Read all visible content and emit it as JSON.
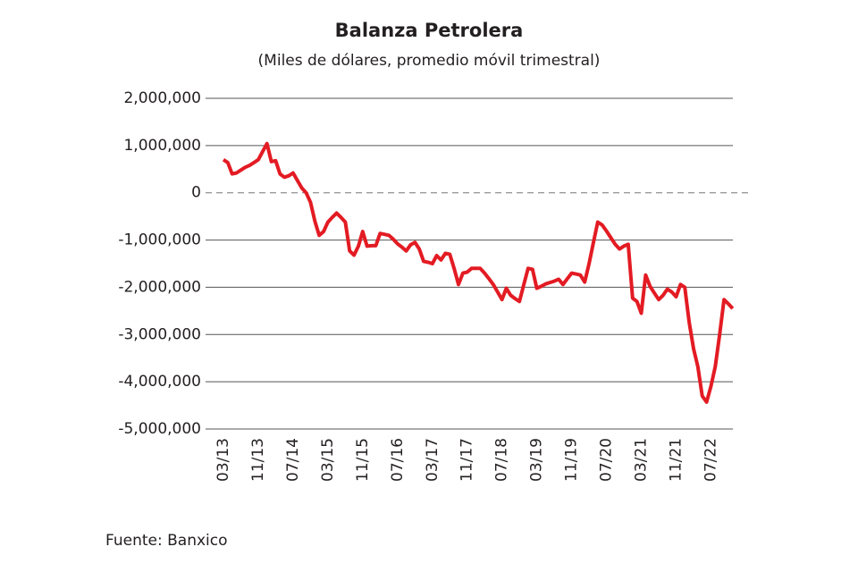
{
  "chart_data": {
    "type": "line",
    "title": "Balanza Petrolera",
    "subtitle": "(Miles de dólares, promedio móvil trimestral)",
    "source": "Fuente: Banxico",
    "categories": [
      "03/13",
      null,
      null,
      null,
      null,
      null,
      null,
      null,
      "11/13",
      null,
      null,
      null,
      null,
      null,
      null,
      null,
      "07/14",
      null,
      null,
      null,
      null,
      null,
      null,
      null,
      "03/15",
      null,
      null,
      null,
      null,
      null,
      null,
      null,
      "11/15",
      null,
      null,
      null,
      null,
      null,
      null,
      null,
      "07/16",
      null,
      null,
      null,
      null,
      null,
      null,
      null,
      "03/17",
      null,
      null,
      null,
      null,
      null,
      null,
      null,
      "11/17",
      null,
      null,
      null,
      null,
      null,
      null,
      null,
      "07/18",
      null,
      null,
      null,
      null,
      null,
      null,
      null,
      "03/19",
      null,
      null,
      null,
      null,
      null,
      null,
      null,
      "11/19",
      null,
      null,
      null,
      null,
      null,
      null,
      null,
      "07/20",
      null,
      null,
      null,
      null,
      null,
      null,
      null,
      "03/21",
      null,
      null,
      null,
      null,
      null,
      null,
      null,
      "11/21",
      null,
      null,
      null,
      null,
      null,
      null,
      null,
      "07/22",
      null,
      null,
      null,
      null,
      null
    ],
    "values": [
      700000,
      640000,
      400000,
      420000,
      480000,
      540000,
      580000,
      640000,
      700000,
      870000,
      1040000,
      660000,
      680000,
      400000,
      330000,
      360000,
      420000,
      260000,
      100000,
      0,
      -200000,
      -600000,
      -900000,
      -820000,
      -620000,
      -520000,
      -430000,
      -520000,
      -620000,
      -1230000,
      -1320000,
      -1130000,
      -820000,
      -1130000,
      -1120000,
      -1120000,
      -860000,
      -880000,
      -900000,
      -980000,
      -1080000,
      -1150000,
      -1230000,
      -1100000,
      -1050000,
      -1190000,
      -1450000,
      -1470000,
      -1500000,
      -1330000,
      -1420000,
      -1280000,
      -1300000,
      -1600000,
      -1940000,
      -1700000,
      -1680000,
      -1600000,
      -1600000,
      -1600000,
      -1700000,
      -1820000,
      -1940000,
      -2100000,
      -2260000,
      -2020000,
      -2170000,
      -2240000,
      -2300000,
      -1950000,
      -1600000,
      -1620000,
      -2020000,
      -1980000,
      -1930000,
      -1900000,
      -1870000,
      -1830000,
      -1940000,
      -1820000,
      -1700000,
      -1720000,
      -1740000,
      -1890000,
      -1500000,
      -1050000,
      -620000,
      -680000,
      -810000,
      -950000,
      -1090000,
      -1190000,
      -1130000,
      -1090000,
      -2230000,
      -2300000,
      -2550000,
      -1740000,
      -1980000,
      -2120000,
      -2260000,
      -2170000,
      -2040000,
      -2100000,
      -2200000,
      -1940000,
      -2000000,
      -2740000,
      -3300000,
      -3680000,
      -4300000,
      -4430000,
      -4100000,
      -3680000,
      -3000000,
      -2260000,
      -2350000,
      -2450000
    ],
    "color": "#e31b23",
    "ylim": [
      -5000000,
      2000000
    ],
    "yticks": [
      {
        "value": 2000000,
        "label": "2,000,000"
      },
      {
        "value": 1000000,
        "label": "1,000,000"
      },
      0,
      {
        "value": -1000000,
        "label": "-1,000,000"
      },
      {
        "value": -2000000,
        "label": "-2,000,000"
      },
      {
        "value": -3000000,
        "label": "-3,000,000"
      },
      {
        "value": -4000000,
        "label": "-4,000,000"
      },
      {
        "value": -5000000,
        "label": "-5,000,000"
      }
    ],
    "grid": true
  }
}
